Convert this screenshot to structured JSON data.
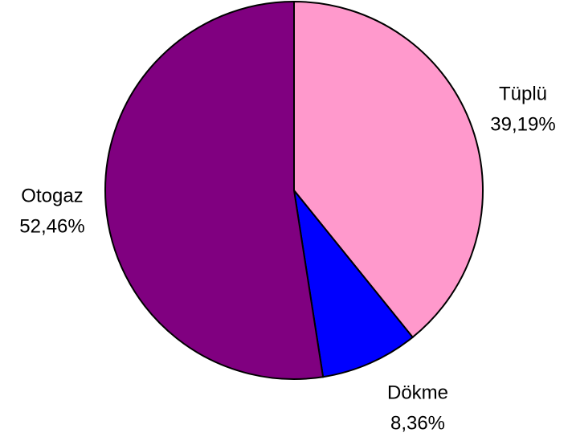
{
  "chart_data": {
    "type": "pie",
    "categories": [
      "Tüplü",
      "Dökme",
      "Otogaz"
    ],
    "values": [
      39.19,
      8.36,
      52.46
    ],
    "value_labels": [
      "39,19%",
      "8,36%",
      "52,46%"
    ],
    "colors": [
      "#ff99cc",
      "#0000ff",
      "#800080"
    ]
  }
}
